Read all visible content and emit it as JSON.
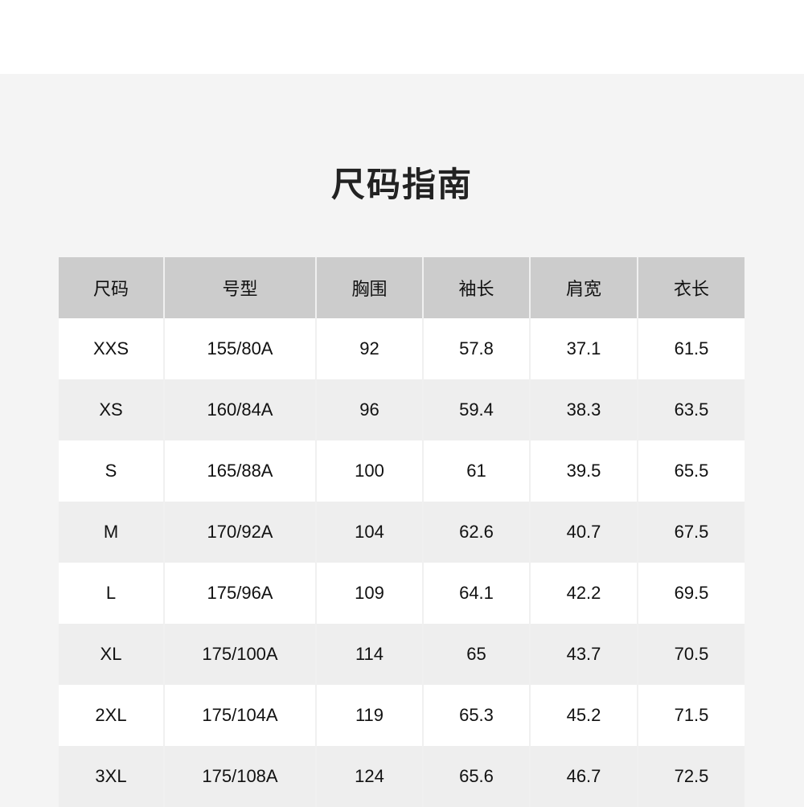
{
  "title": "尺码指南",
  "colors": {
    "header_bg": "#cccccc",
    "row_alt_bg": "#eeeeee",
    "page_bg": "#f4f4f4"
  },
  "table": {
    "headers": [
      "尺码",
      "号型",
      "胸围",
      "袖长",
      "肩宽",
      "衣长"
    ],
    "rows": [
      [
        "XXS",
        "155/80A",
        "92",
        "57.8",
        "37.1",
        "61.5"
      ],
      [
        "XS",
        "160/84A",
        "96",
        "59.4",
        "38.3",
        "63.5"
      ],
      [
        "S",
        "165/88A",
        "100",
        "61",
        "39.5",
        "65.5"
      ],
      [
        "M",
        "170/92A",
        "104",
        "62.6",
        "40.7",
        "67.5"
      ],
      [
        "L",
        "175/96A",
        "109",
        "64.1",
        "42.2",
        "69.5"
      ],
      [
        "XL",
        "175/100A",
        "114",
        "65",
        "43.7",
        "70.5"
      ],
      [
        "2XL",
        "175/104A",
        "119",
        "65.3",
        "45.2",
        "71.5"
      ],
      [
        "3XL",
        "175/108A",
        "124",
        "65.6",
        "46.7",
        "72.5"
      ]
    ]
  }
}
